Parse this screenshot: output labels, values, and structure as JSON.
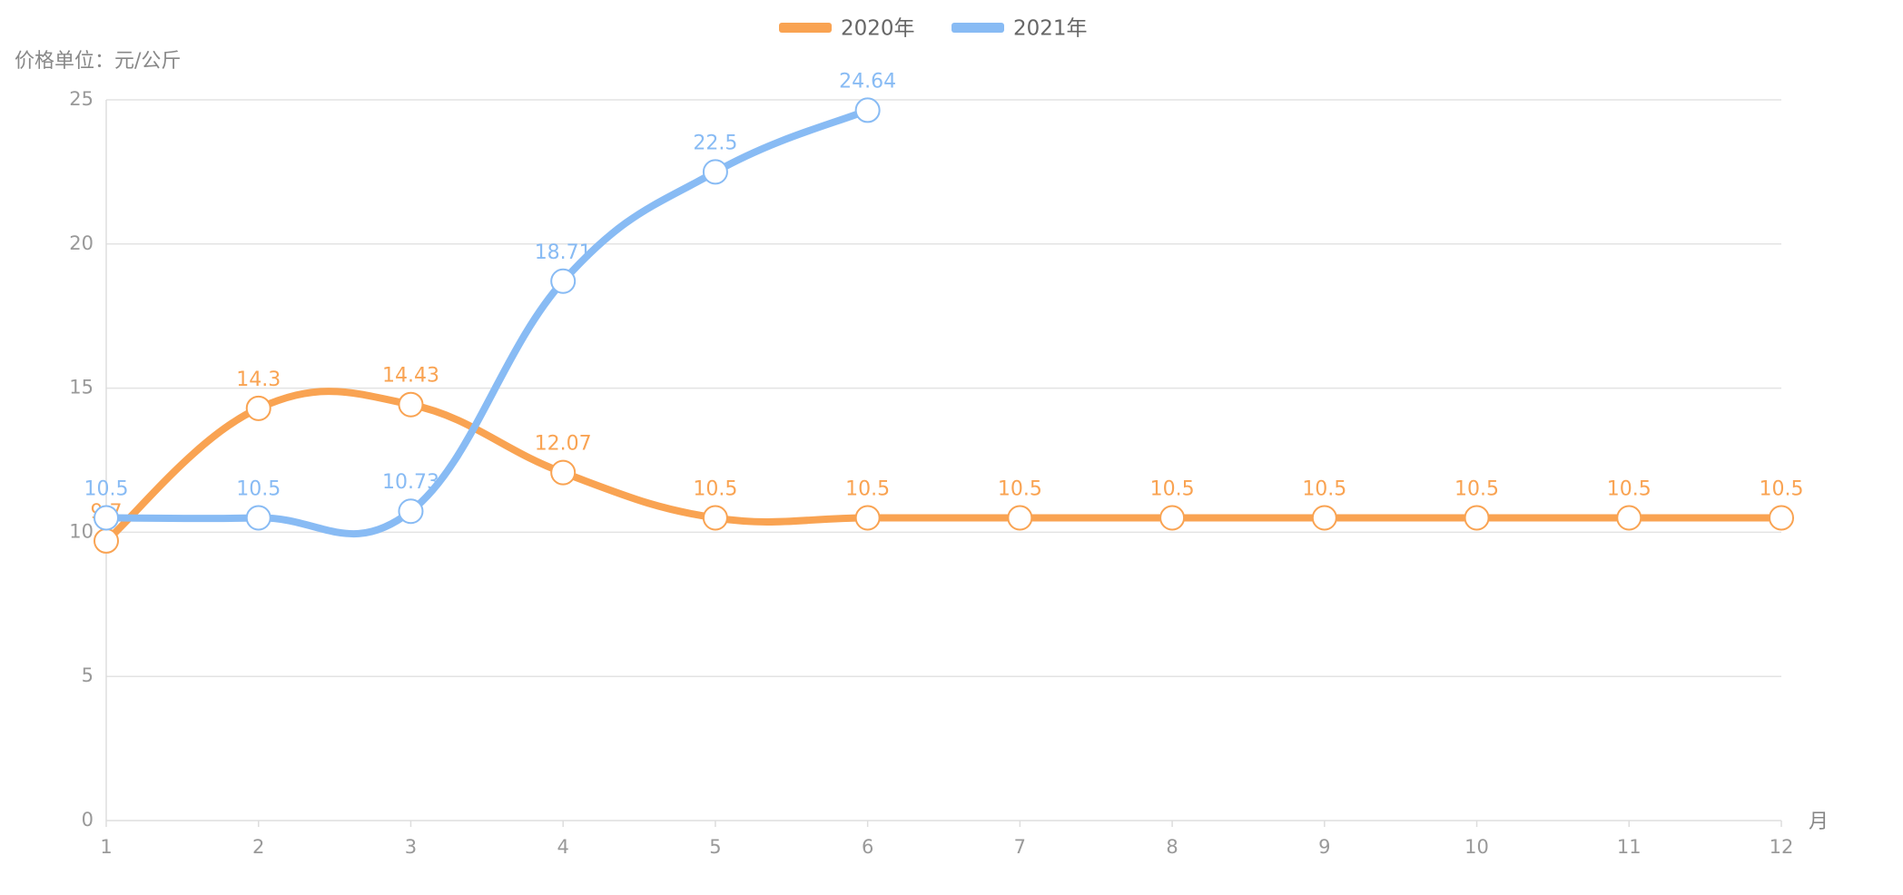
{
  "chart_data": {
    "type": "line",
    "y_axis_label": "价格单位：元/公斤",
    "x_axis_label": "月",
    "categories": [
      "1",
      "2",
      "3",
      "4",
      "5",
      "6",
      "7",
      "8",
      "9",
      "10",
      "11",
      "12"
    ],
    "series": [
      {
        "name": "2020年",
        "color": "#f9a352",
        "values": [
          9.7,
          14.3,
          14.43,
          12.07,
          10.5,
          10.5,
          10.5,
          10.5,
          10.5,
          10.5,
          10.5,
          10.5
        ]
      },
      {
        "name": "2021年",
        "color": "#88bbf4",
        "values": [
          10.5,
          10.5,
          10.73,
          18.71,
          22.5,
          24.64,
          null,
          null,
          null,
          null,
          null,
          null
        ]
      }
    ],
    "ylim": [
      0,
      25
    ],
    "yticks": [
      0,
      5,
      10,
      15,
      20,
      25
    ],
    "grid": true,
    "legend": "top"
  }
}
